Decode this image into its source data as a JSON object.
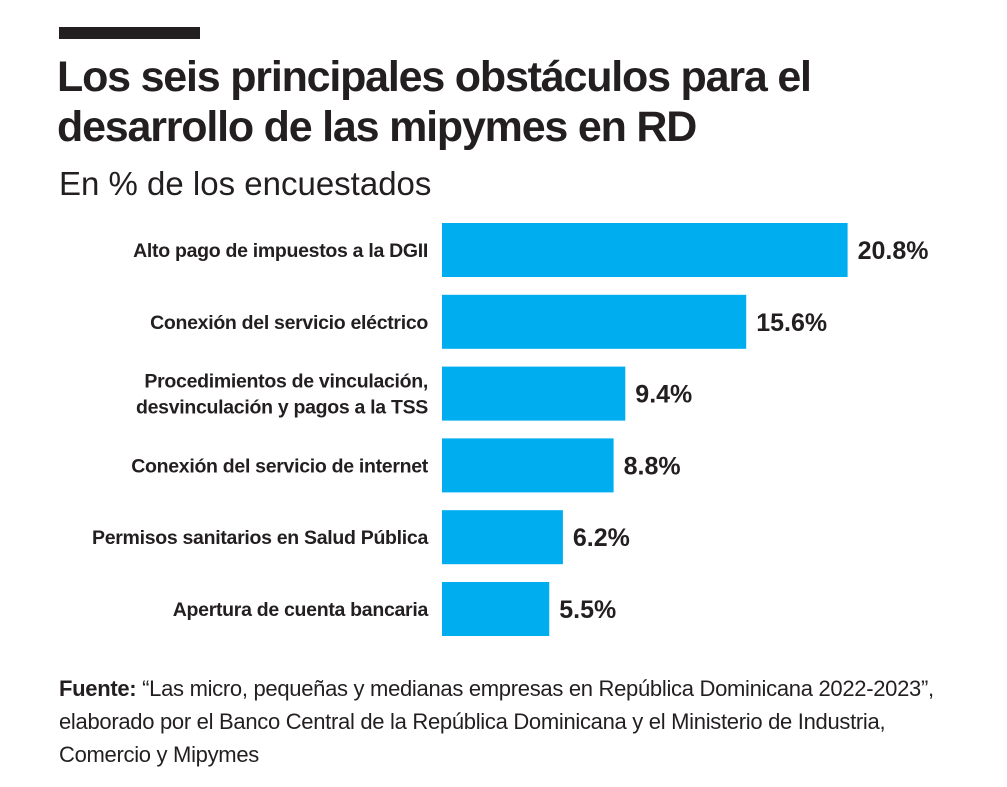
{
  "title": "Los seis principales obstáculos para el desarrollo de las mipymes en RD",
  "subtitle": "En % de los encuestados",
  "source": {
    "label": "Fuente:",
    "text": "“Las micro, pequeñas y medianas empresas en República Dominicana 2022-2023”, elaborado por el Banco Central de la República Dominicana y el Ministerio de Industria, Comercio y Mipymes"
  },
  "colors": {
    "bar": "#00adee",
    "text": "#231f20"
  },
  "chart_data": {
    "type": "bar",
    "orientation": "horizontal",
    "categories": [
      [
        "Alto pago de impuestos a la DGII"
      ],
      [
        "Conexión del servicio eléctrico"
      ],
      [
        "Procedimientos de vinculación,",
        "desvinculación y pagos a la TSS"
      ],
      [
        "Conexión del servicio de internet"
      ],
      [
        "Permisos sanitarios en Salud Pública"
      ],
      [
        "Apertura de cuenta bancaria"
      ]
    ],
    "values": [
      20.8,
      15.6,
      9.4,
      8.8,
      6.2,
      5.5
    ],
    "data_labels": [
      "20.8%",
      "15.6%",
      "9.4%",
      "8.8%",
      "6.2%",
      "5.5%"
    ],
    "unit": "%",
    "grid": false,
    "xlim": [
      0,
      20.8
    ]
  }
}
